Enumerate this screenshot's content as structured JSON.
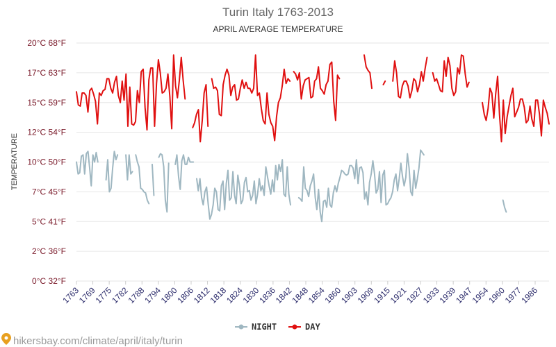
{
  "chart_data": {
    "type": "line",
    "title": "Turin Italy 1763-2013",
    "subtitle": "APRIL AVERAGE TEMPERATURE",
    "ylabel": "TEMPERATURE",
    "y_ticks": [
      "0°C 32°F",
      "2°C 36°F",
      "5°C 41°F",
      "7°C 45°F",
      "10°C 50°F",
      "12°C 54°F",
      "15°C 59°F",
      "17°C 63°F",
      "20°C 68°F"
    ],
    "ylim": [
      0,
      20
    ],
    "x_ticks": [
      "1763",
      "1769",
      "1775",
      "1782",
      "1788",
      "1794",
      "1800",
      "1806",
      "1812",
      "1818",
      "1824",
      "1830",
      "1836",
      "1842",
      "1848",
      "1854",
      "1860",
      "1903",
      "1909",
      "1915",
      "1921",
      "1927",
      "1933",
      "1939",
      "1947",
      "1954",
      "1960",
      "1977",
      "1986"
    ],
    "grid": true,
    "legend_position": "bottom",
    "series": [
      {
        "name": "NIGHT",
        "color": "#9fb7c1",
        "values": [
          10.0,
          9.0,
          9.1,
          10.5,
          10.6,
          9.0,
          10.7,
          10.9,
          9.5,
          8.0,
          10.6,
          10.0,
          10.8,
          10.0,
          null,
          null,
          null,
          null,
          8.5,
          10.2,
          7.5,
          7.8,
          9.5,
          10.9,
          10.2,
          10.6,
          null,
          null,
          null,
          null,
          10.6,
          8.5,
          10.6,
          9.0,
          9.2,
          null,
          10.6,
          10.0,
          9.6,
          7.8,
          7.7,
          7.5,
          7.4,
          6.8,
          6.5,
          null,
          9.8,
          7.2,
          null,
          null,
          10.4,
          10.7,
          10.6,
          9.6,
          6.8,
          5.8,
          9.9,
          null,
          null,
          null,
          9.8,
          10.6,
          8.8,
          7.7,
          10.1,
          10.6,
          9.8,
          9.8,
          10.4,
          10.0,
          10.0,
          10.0,
          null,
          8.6,
          7.6,
          8.6,
          7.0,
          6.4,
          7.5,
          7.9,
          6.5,
          5.2,
          5.6,
          6.4,
          7.8,
          7.5,
          6.0,
          5.9,
          8.0,
          8.4,
          6.0,
          8.2,
          9.3,
          6.8,
          7.0,
          9.2,
          7.2,
          6.5,
          8.9,
          8.0,
          6.5,
          6.8,
          8.3,
          8.7,
          7.5,
          7.6,
          6.8,
          7.2,
          8.4,
          6.5,
          7.3,
          8.6,
          7.6,
          8.0,
          7.2,
          9.6,
          8.8,
          8.0,
          7.3,
          8.5,
          7.5,
          9.7,
          8.5,
          9.8,
          9.2,
          10.2,
          7.3,
          7.1,
          9.6,
          7.3,
          6.4,
          null,
          null,
          null,
          null,
          7.0,
          6.9,
          6.7,
          9.6,
          7.8,
          7.6,
          7.1,
          8.0,
          8.4,
          9.0,
          7.0,
          6.0,
          7.7,
          5.8,
          5.0,
          6.7,
          6.8,
          6.2,
          7.8,
          6.4,
          6.2,
          7.4,
          8.0,
          7.5,
          8.2,
          8.7,
          9.3,
          9.2,
          9.0,
          8.9,
          9.0,
          9.7,
          9.7,
          9.5,
          8.6,
          10.2,
          8.2,
          9.5,
          9.6,
          9.1,
          6.9,
          7.5,
          6.4,
          8.3,
          9.0,
          10.1,
          9.0,
          7.4,
          7.7,
          9.2,
          6.6,
          8.9,
          9.3,
          6.4,
          6.5,
          6.8,
          7.0,
          7.5,
          8.5,
          9.0,
          7.6,
          8.6,
          9.9,
          8.8,
          8.0,
          8.7,
          10.7,
          9.5,
          7.5,
          7.2,
          9.3,
          7.8,
          8.6,
          9.5,
          11.0,
          10.8,
          10.6,
          null,
          null,
          null,
          null,
          null,
          null,
          null,
          null,
          null,
          null,
          null,
          null,
          null,
          null,
          null,
          null,
          null,
          null,
          null,
          null,
          null,
          null,
          null,
          null,
          null,
          null,
          null,
          null,
          null,
          null,
          null,
          null,
          null,
          null,
          null,
          null,
          null,
          null,
          null,
          null,
          null,
          null,
          null,
          null,
          null,
          null,
          null,
          6.8,
          6.2,
          5.8,
          null,
          null,
          null,
          null,
          null,
          null,
          null,
          null,
          null,
          null,
          null,
          null,
          null,
          null,
          null,
          null,
          null,
          null,
          null,
          null,
          null,
          null,
          null,
          null,
          null,
          null
        ],
        "x_start": 1763
      },
      {
        "name": "DAY",
        "color": "#e01010",
        "values": [
          15.9,
          14.8,
          14.7,
          15.8,
          15.8,
          15.6,
          14.2,
          16.0,
          16.2,
          15.7,
          15.1,
          13.2,
          15.8,
          15.6,
          16.0,
          16.1,
          17.0,
          17.0,
          16.2,
          15.8,
          16.7,
          17.2,
          15.6,
          15.0,
          16.8,
          15.2,
          17.4,
          13.0,
          16.3,
          13.2,
          13.1,
          13.4,
          16.0,
          15.0,
          17.6,
          17.8,
          14.6,
          12.7,
          16.9,
          17.9,
          17.9,
          13.0,
          16.6,
          18.6,
          17.5,
          15.8,
          15.9,
          16.2,
          17.4,
          15.5,
          12.8,
          19.0,
          16.4,
          15.4,
          16.9,
          18.8,
          16.9,
          15.3,
          null,
          null,
          null,
          12.9,
          13.3,
          14.0,
          14.4,
          11.7,
          13.5,
          15.8,
          16.5,
          13.0,
          null,
          17.0,
          16.2,
          16.3,
          16.0,
          14.0,
          13.9,
          16.5,
          17.3,
          17.8,
          17.3,
          15.6,
          16.3,
          16.5,
          15.2,
          15.3,
          16.2,
          16.9,
          16.2,
          16.7,
          16.2,
          16.2,
          15.8,
          16.2,
          19.0,
          15.6,
          15.8,
          14.5,
          13.5,
          13.2,
          15.8,
          14.0,
          13.3,
          13.0,
          11.8,
          13.8,
          15.0,
          15.4,
          16.4,
          17.8,
          16.6,
          17.0,
          16.8,
          null,
          17.6,
          17.4,
          16.9,
          17.5,
          15.3,
          16.4,
          16.9,
          17.0,
          17.1,
          15.4,
          15.5,
          16.8,
          17.0,
          18.0,
          16.2,
          16.0,
          15.7,
          16.5,
          16.8,
          18.2,
          18.4,
          15.1,
          13.5,
          17.3,
          17.0,
          null,
          null,
          null,
          null,
          null,
          null,
          null,
          null,
          null,
          null,
          null,
          null,
          19.0,
          18.0,
          17.7,
          17.5,
          16.2,
          null,
          null,
          null,
          null,
          null,
          16.5,
          16.8,
          null,
          null,
          null,
          16.8,
          18.5,
          17.5,
          15.5,
          15.4,
          16.4,
          16.8,
          16.8,
          16.4,
          15.4,
          16.0,
          17.0,
          16.8,
          15.9,
          16.5,
          17.6,
          16.8,
          17.9,
          18.8,
          null,
          null,
          17.5,
          16.8,
          17.0,
          16.5,
          16.0,
          15.9,
          18.5,
          17.2,
          18.8,
          18.1,
          16.2,
          15.6,
          15.9,
          17.9,
          17.4,
          19.0,
          18.9,
          17.4,
          16.3,
          16.7,
          null,
          null,
          null,
          null,
          null,
          null,
          15.0,
          14.0,
          13.5,
          14.5,
          16.2,
          15.8,
          13.7,
          15.7,
          17.2,
          14.0,
          11.7,
          15.2,
          12.4,
          13.8,
          14.7,
          15.6,
          16.2,
          13.8,
          14.2,
          14.6,
          15.3,
          15.3,
          14.6,
          13.3,
          13.5,
          14.7,
          13.6,
          13.0,
          15.2,
          15.2,
          14.0,
          12.2,
          15.2,
          14.6,
          14.1,
          13.2
        ],
        "x_start": 1763
      }
    ]
  },
  "legend": {
    "night_label": "NIGHT",
    "day_label": "DAY"
  },
  "footer": {
    "source": "hikersbay.com/climate/april/italy/turin"
  }
}
